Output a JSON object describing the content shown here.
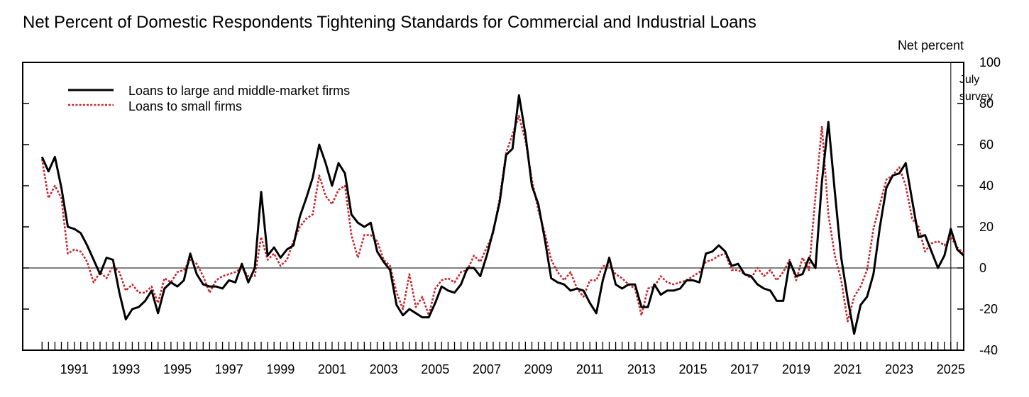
{
  "chart_data": {
    "type": "line",
    "title": "Net Percent of Domestic Respondents Tightening Standards for Commercial and Industrial Loans",
    "ylabel": "Net percent",
    "xlabel": "",
    "ylim": [
      -40,
      100
    ],
    "xlim": [
      1989.5,
      2026.0
    ],
    "yticks": [
      -40,
      -20,
      0,
      20,
      40,
      60,
      80,
      100
    ],
    "xticks": [
      "1991",
      "1993",
      "1995",
      "1997",
      "1999",
      "2001",
      "2003",
      "2005",
      "2007",
      "2009",
      "2011",
      "2013",
      "2015",
      "2017",
      "2019",
      "2021",
      "2023",
      "2025"
    ],
    "legend_position": "top-left",
    "annotation": {
      "line1": "July",
      "line2": "survey",
      "x": 2025.5
    },
    "colors": {
      "large": "#000000",
      "small": "#c8292f",
      "axis": "#000000"
    },
    "series": [
      {
        "name": "Loans to large and middle-market firms",
        "style": "solid",
        "points": [
          [
            1990.25,
            54
          ],
          [
            1990.5,
            47
          ],
          [
            1990.75,
            54
          ],
          [
            1991.0,
            39
          ],
          [
            1991.25,
            20
          ],
          [
            1991.5,
            19
          ],
          [
            1991.75,
            17
          ],
          [
            1992.0,
            11
          ],
          [
            1992.25,
            4
          ],
          [
            1992.5,
            -3
          ],
          [
            1992.75,
            5
          ],
          [
            1993.0,
            4
          ],
          [
            1993.25,
            -12
          ],
          [
            1993.5,
            -25
          ],
          [
            1993.75,
            -20
          ],
          [
            1994.0,
            -19
          ],
          [
            1994.25,
            -16
          ],
          [
            1994.5,
            -11
          ],
          [
            1994.75,
            -22
          ],
          [
            1995.0,
            -10
          ],
          [
            1995.25,
            -7
          ],
          [
            1995.5,
            -9
          ],
          [
            1995.75,
            -6
          ],
          [
            1996.0,
            7
          ],
          [
            1996.25,
            -3
          ],
          [
            1996.5,
            -8
          ],
          [
            1996.75,
            -9
          ],
          [
            1997.0,
            -9
          ],
          [
            1997.25,
            -10
          ],
          [
            1997.5,
            -6
          ],
          [
            1997.75,
            -7
          ],
          [
            1998.0,
            2
          ],
          [
            1998.25,
            -7
          ],
          [
            1998.5,
            0
          ],
          [
            1998.75,
            37
          ],
          [
            1999.0,
            6
          ],
          [
            1999.25,
            10
          ],
          [
            1999.5,
            5
          ],
          [
            1999.75,
            9
          ],
          [
            2000.0,
            11
          ],
          [
            2000.25,
            25
          ],
          [
            2000.5,
            34
          ],
          [
            2000.75,
            44
          ],
          [
            2001.0,
            60
          ],
          [
            2001.25,
            51
          ],
          [
            2001.5,
            40
          ],
          [
            2001.75,
            51
          ],
          [
            2002.0,
            46
          ],
          [
            2002.25,
            26
          ],
          [
            2002.5,
            22
          ],
          [
            2002.75,
            20
          ],
          [
            2003.0,
            22
          ],
          [
            2003.25,
            8
          ],
          [
            2003.5,
            3
          ],
          [
            2003.75,
            -1
          ],
          [
            2004.0,
            -18
          ],
          [
            2004.25,
            -23
          ],
          [
            2004.5,
            -20
          ],
          [
            2004.75,
            -22
          ],
          [
            2005.0,
            -24
          ],
          [
            2005.25,
            -24
          ],
          [
            2005.5,
            -17
          ],
          [
            2005.75,
            -9
          ],
          [
            2006.0,
            -11
          ],
          [
            2006.25,
            -12
          ],
          [
            2006.5,
            -8
          ],
          [
            2006.75,
            0
          ],
          [
            2007.0,
            0
          ],
          [
            2007.25,
            -4
          ],
          [
            2007.5,
            6
          ],
          [
            2007.75,
            18
          ],
          [
            2008.0,
            32
          ],
          [
            2008.25,
            55
          ],
          [
            2008.5,
            58
          ],
          [
            2008.75,
            84
          ],
          [
            2009.0,
            65
          ],
          [
            2009.25,
            40
          ],
          [
            2009.5,
            31
          ],
          [
            2009.75,
            14
          ],
          [
            2010.0,
            -5
          ],
          [
            2010.25,
            -7
          ],
          [
            2010.5,
            -8
          ],
          [
            2010.75,
            -11
          ],
          [
            2011.0,
            -10
          ],
          [
            2011.25,
            -11
          ],
          [
            2011.5,
            -17
          ],
          [
            2011.75,
            -22
          ],
          [
            2012.0,
            -6
          ],
          [
            2012.25,
            5
          ],
          [
            2012.5,
            -8
          ],
          [
            2012.75,
            -10
          ],
          [
            2013.0,
            -8
          ],
          [
            2013.25,
            -8
          ],
          [
            2013.5,
            -19
          ],
          [
            2013.75,
            -19
          ],
          [
            2014.0,
            -8
          ],
          [
            2014.25,
            -13
          ],
          [
            2014.5,
            -11
          ],
          [
            2014.75,
            -11
          ],
          [
            2015.0,
            -10
          ],
          [
            2015.25,
            -6
          ],
          [
            2015.5,
            -6
          ],
          [
            2015.75,
            -7
          ],
          [
            2016.0,
            7
          ],
          [
            2016.25,
            8
          ],
          [
            2016.5,
            11
          ],
          [
            2016.75,
            8
          ],
          [
            2017.0,
            1
          ],
          [
            2017.25,
            2
          ],
          [
            2017.5,
            -3
          ],
          [
            2017.75,
            -4
          ],
          [
            2018.0,
            -8
          ],
          [
            2018.25,
            -10
          ],
          [
            2018.5,
            -11
          ],
          [
            2018.75,
            -16
          ],
          [
            2019.0,
            -16
          ],
          [
            2019.25,
            3
          ],
          [
            2019.5,
            -4
          ],
          [
            2019.75,
            -3
          ],
          [
            2020.0,
            5
          ],
          [
            2020.25,
            0
          ],
          [
            2020.5,
            42
          ],
          [
            2020.75,
            71
          ],
          [
            2021.0,
            37
          ],
          [
            2021.25,
            5
          ],
          [
            2021.5,
            -15
          ],
          [
            2021.75,
            -32
          ],
          [
            2022.0,
            -18
          ],
          [
            2022.25,
            -14
          ],
          [
            2022.5,
            -3
          ],
          [
            2022.75,
            20
          ],
          [
            2023.0,
            39
          ],
          [
            2023.25,
            45
          ],
          [
            2023.5,
            46
          ],
          [
            2023.75,
            51
          ],
          [
            2024.0,
            33
          ],
          [
            2024.25,
            15
          ],
          [
            2024.5,
            16
          ],
          [
            2024.75,
            8
          ],
          [
            2025.0,
            0
          ],
          [
            2025.25,
            6
          ],
          [
            2025.5,
            19
          ],
          [
            2025.75,
            9
          ],
          [
            2026.0,
            6
          ]
        ]
      },
      {
        "name": "Loans to small firms",
        "style": "dashed",
        "points": [
          [
            1990.25,
            53
          ],
          [
            1990.5,
            34
          ],
          [
            1990.75,
            40
          ],
          [
            1991.0,
            34
          ],
          [
            1991.25,
            7
          ],
          [
            1991.5,
            9
          ],
          [
            1991.75,
            8
          ],
          [
            1992.0,
            3
          ],
          [
            1992.25,
            -7
          ],
          [
            1992.5,
            -2
          ],
          [
            1992.75,
            -5
          ],
          [
            1993.0,
            1
          ],
          [
            1993.25,
            -2
          ],
          [
            1993.5,
            -11
          ],
          [
            1993.75,
            -8
          ],
          [
            1994.0,
            -12
          ],
          [
            1994.25,
            -12
          ],
          [
            1994.5,
            -9
          ],
          [
            1994.75,
            -17
          ],
          [
            1995.0,
            -5
          ],
          [
            1995.25,
            -7
          ],
          [
            1995.5,
            -2
          ],
          [
            1995.75,
            -1
          ],
          [
            1996.0,
            4
          ],
          [
            1996.25,
            2
          ],
          [
            1996.5,
            -4
          ],
          [
            1996.75,
            -12
          ],
          [
            1997.0,
            -6
          ],
          [
            1997.25,
            -4
          ],
          [
            1997.5,
            -3
          ],
          [
            1997.75,
            -2
          ],
          [
            1998.0,
            0
          ],
          [
            1998.25,
            -4
          ],
          [
            1998.5,
            -4
          ],
          [
            1998.75,
            15
          ],
          [
            1999.0,
            4
          ],
          [
            1999.25,
            7
          ],
          [
            1999.5,
            1
          ],
          [
            1999.75,
            4
          ],
          [
            2000.0,
            13
          ],
          [
            2000.25,
            20
          ],
          [
            2000.5,
            24
          ],
          [
            2000.75,
            26
          ],
          [
            2001.0,
            45
          ],
          [
            2001.25,
            35
          ],
          [
            2001.5,
            31
          ],
          [
            2001.75,
            38
          ],
          [
            2002.0,
            40
          ],
          [
            2002.25,
            16
          ],
          [
            2002.5,
            5
          ],
          [
            2002.75,
            16
          ],
          [
            2003.0,
            16
          ],
          [
            2003.25,
            13
          ],
          [
            2003.5,
            4
          ],
          [
            2003.75,
            1
          ],
          [
            2004.0,
            -12
          ],
          [
            2004.25,
            -20
          ],
          [
            2004.5,
            -3
          ],
          [
            2004.75,
            -19
          ],
          [
            2005.0,
            -14
          ],
          [
            2005.25,
            -23
          ],
          [
            2005.5,
            -10
          ],
          [
            2005.75,
            -6
          ],
          [
            2006.0,
            -5
          ],
          [
            2006.25,
            -7
          ],
          [
            2006.5,
            -2
          ],
          [
            2006.75,
            -1
          ],
          [
            2007.0,
            6
          ],
          [
            2007.25,
            3
          ],
          [
            2007.5,
            10
          ],
          [
            2007.75,
            17
          ],
          [
            2008.0,
            34
          ],
          [
            2008.25,
            56
          ],
          [
            2008.5,
            65
          ],
          [
            2008.75,
            74
          ],
          [
            2009.0,
            62
          ],
          [
            2009.25,
            43
          ],
          [
            2009.5,
            28
          ],
          [
            2009.75,
            17
          ],
          [
            2010.0,
            4
          ],
          [
            2010.25,
            -2
          ],
          [
            2010.5,
            -6
          ],
          [
            2010.75,
            -2
          ],
          [
            2011.0,
            -10
          ],
          [
            2011.25,
            -14
          ],
          [
            2011.5,
            -6
          ],
          [
            2011.75,
            -6
          ],
          [
            2012.0,
            1
          ],
          [
            2012.25,
            1
          ],
          [
            2012.5,
            -3
          ],
          [
            2012.75,
            -5
          ],
          [
            2013.0,
            -8
          ],
          [
            2013.25,
            -10
          ],
          [
            2013.5,
            -23
          ],
          [
            2013.75,
            -10
          ],
          [
            2014.0,
            -9
          ],
          [
            2014.25,
            -4
          ],
          [
            2014.5,
            -7
          ],
          [
            2014.75,
            -8
          ],
          [
            2015.0,
            -7
          ],
          [
            2015.25,
            -6
          ],
          [
            2015.5,
            -4
          ],
          [
            2015.75,
            -2
          ],
          [
            2016.0,
            3
          ],
          [
            2016.25,
            4
          ],
          [
            2016.5,
            6
          ],
          [
            2016.75,
            7
          ],
          [
            2017.0,
            -1
          ],
          [
            2017.25,
            -1
          ],
          [
            2017.5,
            -3
          ],
          [
            2017.75,
            -5
          ],
          [
            2018.0,
            0
          ],
          [
            2018.25,
            -4
          ],
          [
            2018.5,
            -1
          ],
          [
            2018.75,
            -6
          ],
          [
            2019.0,
            -2
          ],
          [
            2019.25,
            4
          ],
          [
            2019.5,
            -6
          ],
          [
            2019.75,
            5
          ],
          [
            2020.0,
            -1
          ],
          [
            2020.25,
            35
          ],
          [
            2020.5,
            69
          ],
          [
            2020.75,
            26
          ],
          [
            2021.0,
            6
          ],
          [
            2021.25,
            -6
          ],
          [
            2021.5,
            -26
          ],
          [
            2021.75,
            -14
          ],
          [
            2022.0,
            -9
          ],
          [
            2022.25,
            -1
          ],
          [
            2022.5,
            19
          ],
          [
            2022.75,
            31
          ],
          [
            2023.0,
            43
          ],
          [
            2023.25,
            45
          ],
          [
            2023.5,
            49
          ],
          [
            2023.75,
            40
          ],
          [
            2024.0,
            24
          ],
          [
            2024.25,
            20
          ],
          [
            2024.5,
            8
          ],
          [
            2024.75,
            12
          ],
          [
            2025.0,
            13
          ],
          [
            2025.25,
            11
          ],
          [
            2025.5,
            15
          ],
          [
            2025.75,
            10
          ],
          [
            2026.0,
            7
          ]
        ]
      }
    ]
  }
}
